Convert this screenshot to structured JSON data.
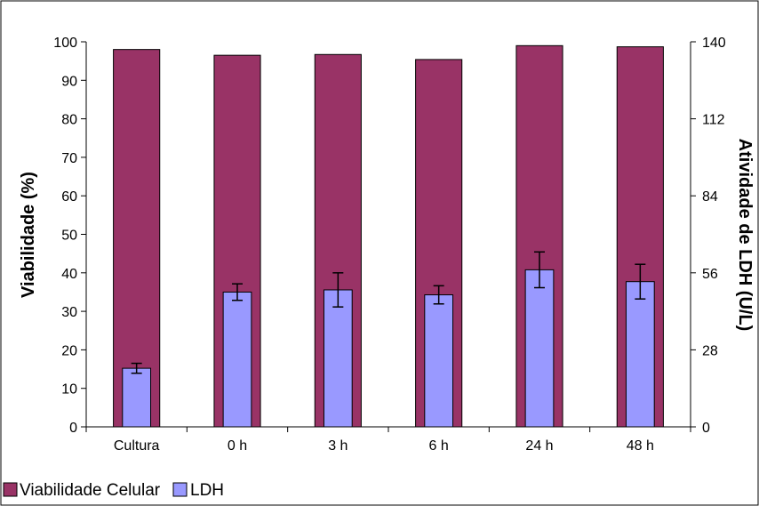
{
  "chart_data": {
    "type": "bar",
    "categories": [
      "Cultura",
      "0 h",
      "3 h",
      "6 h",
      "24 h",
      "48 h"
    ],
    "series": [
      {
        "name": "Viabilidade Celular",
        "axis": "left",
        "color": "#993366",
        "values": [
          98.0,
          96.5,
          96.7,
          95.4,
          99.0,
          98.7
        ]
      },
      {
        "name": "LDH",
        "axis": "right",
        "color": "#9999ff",
        "values": [
          21.3,
          49.0,
          49.8,
          48.0,
          57.1,
          52.8
        ],
        "error": [
          1.8,
          3.0,
          6.2,
          3.3,
          6.5,
          6.3
        ]
      }
    ],
    "ylabel": "Viabilidade (%)",
    "y2label": "Atividade de LDH (U/L)",
    "ylim": [
      0,
      100
    ],
    "y2lim": [
      0,
      140
    ],
    "yticks": [
      "0",
      "10",
      "20",
      "30",
      "40",
      "50",
      "60",
      "70",
      "80",
      "90",
      "100"
    ],
    "y2ticks": [
      "0",
      "28",
      "56",
      "84",
      "112",
      "140"
    ],
    "grid": false,
    "legend": "bottom-left"
  }
}
